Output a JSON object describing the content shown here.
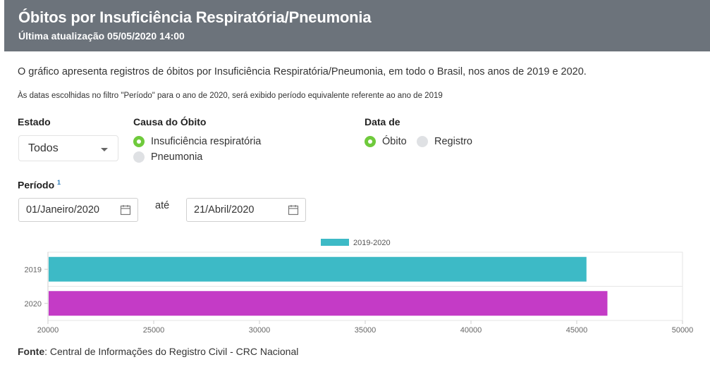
{
  "header": {
    "title": "Óbitos por Insuficiência Respiratória/Pneumonia",
    "subtitle": "Última atualização 05/05/2020 14:00"
  },
  "description": "O gráfico apresenta registros de óbitos por Insuficiência Respiratória/Pneumonia, em todo o Brasil, nos anos de 2019 e 2020.",
  "note": "Às datas escolhidas no filtro \"Período\" para o ano de 2020, será exibido período equivalente referente ao ano de 2019",
  "filters": {
    "estado": {
      "label": "Estado",
      "value": "Todos"
    },
    "causa": {
      "label": "Causa do Óbito",
      "options": [
        {
          "label": "Insuficiência respiratória",
          "selected": true
        },
        {
          "label": "Pneumonia",
          "selected": false
        }
      ]
    },
    "data_de": {
      "label": "Data de",
      "options": [
        {
          "label": "Óbito",
          "selected": true
        },
        {
          "label": "Registro",
          "selected": false
        }
      ]
    },
    "periodo": {
      "label": "Período",
      "footnote": "1",
      "start": "01/Janeiro/2020",
      "separator": "até",
      "end": "21/Abril/2020"
    }
  },
  "chart_data": {
    "type": "bar",
    "orientation": "horizontal",
    "categories": [
      "2019",
      "2020"
    ],
    "values": [
      45460,
      46450
    ],
    "bar_colors": [
      "#3dbac6",
      "#c43bc6"
    ],
    "legend": {
      "label": "2019-2020",
      "color": "#3dbac6",
      "position": "top"
    },
    "xlim": [
      20000,
      50000
    ],
    "xticks": [
      "20000",
      "25000",
      "30000",
      "35000",
      "40000",
      "45000",
      "50000"
    ],
    "grid": true
  },
  "footer": {
    "source_label": "Fonte",
    "source_text": ": Central de Informações do Registro Civil - CRC Nacional"
  }
}
